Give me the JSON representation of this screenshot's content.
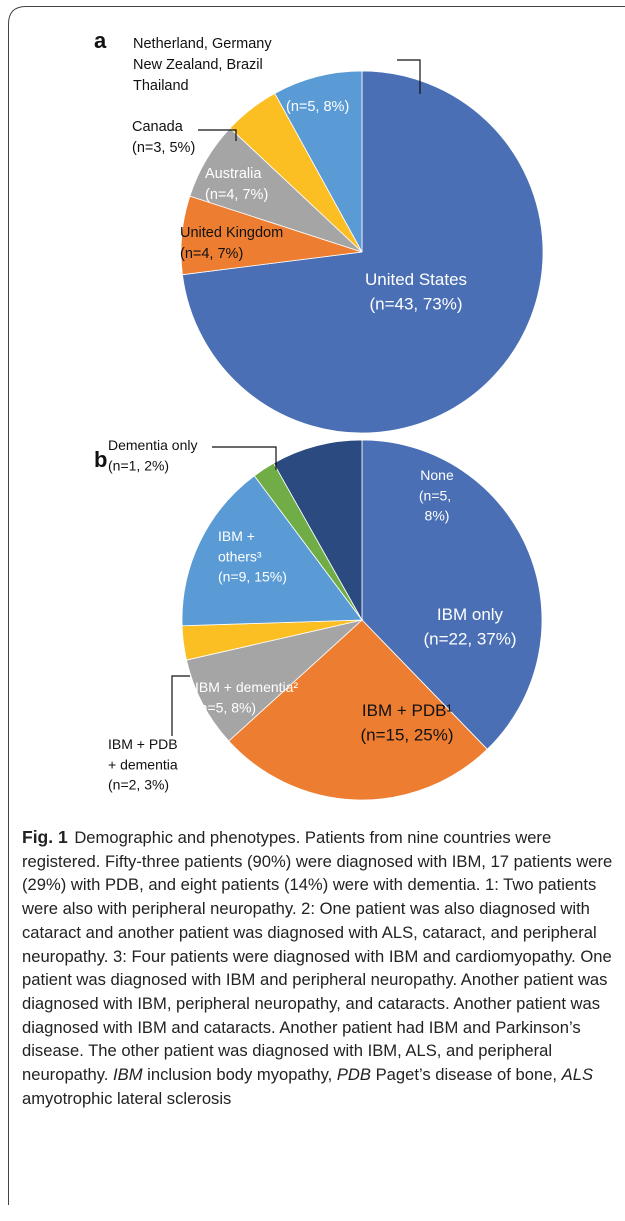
{
  "chart_data": [
    {
      "type": "pie",
      "title": "a",
      "categories": [
        "United States",
        "United Kingdom",
        "Australia",
        "Canada",
        "Netherland, Germany New Zealand, Brazil Thailand"
      ],
      "values": [
        73,
        7,
        7,
        5,
        8
      ],
      "value_labels": [
        "(n=43, 73%)",
        "(n=4, 7%)",
        "(n=4, 7%)",
        "(n=3, 5%)",
        "(n=5, 8%)"
      ],
      "colors": [
        "#4a6fb5",
        "#ed7d31",
        "#a5a5a5",
        "#fbbf24",
        "#5b9bd5"
      ]
    },
    {
      "type": "pie",
      "title": "b",
      "categories": [
        "IBM only",
        "IBM + PDB¹",
        "IBM + dementia²",
        "IBM + PDB + dementia",
        "IBM + others³",
        "Dementia only",
        "None"
      ],
      "values": [
        37,
        25,
        8,
        3,
        15,
        2,
        8
      ],
      "value_labels": [
        "(n=22, 37%)",
        "(n=15, 25%)",
        "(n=5, 8%)",
        "(n=2, 3%)",
        "(n=9, 15%)",
        "(n=1, 2%)",
        "(n=5, 8%)"
      ],
      "colors": [
        "#4a6fb5",
        "#ed7d31",
        "#a5a5a5",
        "#fbbf24",
        "#5b9bd5",
        "#70ad47",
        "#2b4a80"
      ]
    }
  ],
  "caption": {
    "label": "Fig. 1",
    "segments": [
      {
        "text": " Demographic and phenotypes. Patients from nine countries were registered. Fifty-three patients (90%) were diagnosed with IBM, 17 patients were (29%) with PDB, and eight patients (14%) were with dementia. 1: Two patients were also with peripheral neuropathy. 2: One patient was also diagnosed with cataract and another patient was diagnosed with ALS, cataract, and peripheral neuropathy. 3: Four patients were diagnosed with IBM and cardiomyopathy. One patient was diagnosed with IBM and peripheral neuropathy. Another patient was diagnosed with IBM, peripheral neuropathy, and cataracts. Another patient was diagnosed with IBM and cataracts. Another patient had IBM and Parkinson’s disease. The other patient was diagnosed with IBM, ALS, and peripheral neuropathy. ",
        "italic": false
      },
      {
        "text": "IBM",
        "italic": true
      },
      {
        "text": " inclusion body myopathy, ",
        "italic": false
      },
      {
        "text": "PDB",
        "italic": true
      },
      {
        "text": " Paget’s disease of bone, ",
        "italic": false
      },
      {
        "text": "ALS",
        "italic": true
      },
      {
        "text": " amyotrophic lateral sclerosis",
        "italic": false
      }
    ]
  }
}
